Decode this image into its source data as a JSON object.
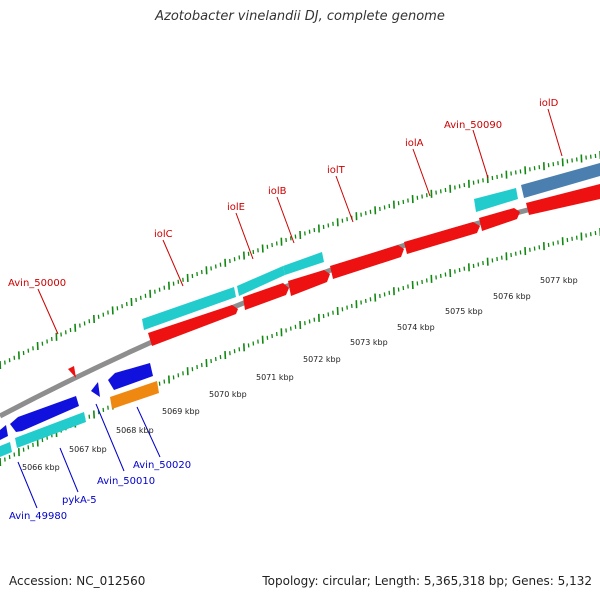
{
  "title": "Azotobacter vinelandii DJ, complete genome",
  "footer": {
    "accession": "Accession: NC_012560",
    "summary": "Topology: circular; Length: 5,365,318 bp; Genes: 5,132"
  },
  "colors": {
    "forward_cds": "#ee1111",
    "forward_gene": "#22cccc",
    "reverse_cds": "#1111dd",
    "reverse_gene": "#22cccc",
    "other_gene": "#ee8811",
    "special_gene": "#4a7fb0",
    "backbone": "#8e8e8e",
    "tick": "#118811",
    "forward_label": "#cc0000",
    "reverse_label": "#0000cc"
  },
  "ruler": {
    "unit": "kbp",
    "labels": [
      "5066 kbp",
      "5067 kbp",
      "5068 kbp",
      "5069 kbp",
      "5070 kbp",
      "5071 kbp",
      "5072 kbp",
      "5073 kbp",
      "5074 kbp",
      "5075 kbp",
      "5076 kbp",
      "5077 kbp"
    ]
  },
  "forward_labels": [
    "Avin_50000",
    "iolC",
    "iolE",
    "iolB",
    "iolT",
    "iolA",
    "Avin_50090",
    "iolD"
  ],
  "reverse_labels": [
    "Avin_49980",
    "pykA-5",
    "Avin_50010",
    "Avin_50020"
  ]
}
